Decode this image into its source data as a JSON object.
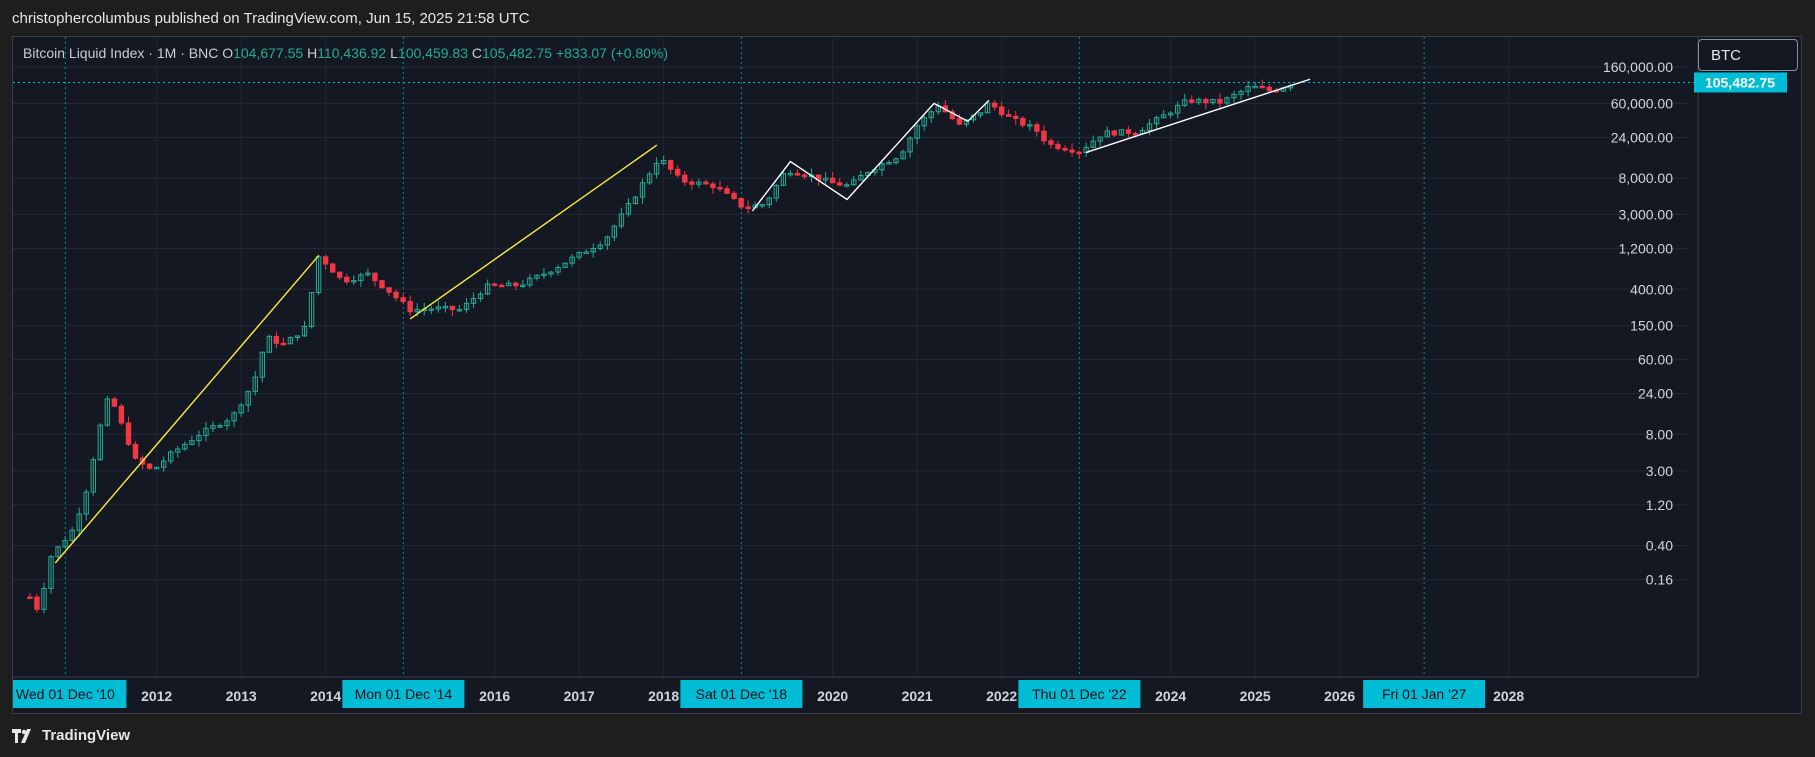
{
  "header": {
    "published_text": "christophercolumbus published on TradingView.com, Jun 15, 2025 21:58 UTC"
  },
  "legend": {
    "symbol_line": "Bitcoin Liquid Index · 1M · BNC",
    "open_label": "O",
    "open_value": "104,677.55",
    "high_label": "H",
    "high_value": "110,436.92",
    "low_label": "L",
    "low_value": "100,459.83",
    "close_label": "C",
    "close_value": "105,482.75",
    "change": "+833.07 (+0.80%)"
  },
  "symbol_box": {
    "label": "BTC"
  },
  "footer": {
    "logo_text": "TradingView"
  },
  "colors": {
    "up": "#22ab94",
    "down": "#f23645",
    "yellow_line": "#ffeb3b",
    "white_line": "#ffffff",
    "badge": "#00bcd4",
    "background": "#141823"
  },
  "chart_data": {
    "type": "candlestick",
    "title": "Bitcoin Liquid Index · 1M · BNC",
    "interval": "1M",
    "y_scale": "log",
    "ylim": [
      0.1,
      160000
    ],
    "xlim": [
      2010.3,
      2028.4
    ],
    "y_ticks": [
      {
        "value": 160000,
        "label": "160,000.00"
      },
      {
        "value": 60000,
        "label": "60,000.00"
      },
      {
        "value": 24000,
        "label": "24,000.00"
      },
      {
        "value": 8000,
        "label": "8,000.00"
      },
      {
        "value": 3000,
        "label": "3,000.00"
      },
      {
        "value": 1200,
        "label": "1,200.00"
      },
      {
        "value": 400,
        "label": "400.00"
      },
      {
        "value": 150,
        "label": "150.00"
      },
      {
        "value": 60,
        "label": "60.00"
      },
      {
        "value": 24,
        "label": "24.00"
      },
      {
        "value": 8,
        "label": "8.00"
      },
      {
        "value": 3,
        "label": "3.00"
      },
      {
        "value": 1.2,
        "label": "1.20"
      },
      {
        "value": 0.4,
        "label": "0.40"
      },
      {
        "value": 0.16,
        "label": "0.16"
      }
    ],
    "x_ticks": [
      {
        "value": 2012,
        "label": "2012"
      },
      {
        "value": 2013,
        "label": "2013"
      },
      {
        "value": 2014,
        "label": "2014"
      },
      {
        "value": 2016,
        "label": "2016"
      },
      {
        "value": 2017,
        "label": "2017"
      },
      {
        "value": 2018,
        "label": "2018"
      },
      {
        "value": 2020,
        "label": "2020"
      },
      {
        "value": 2021,
        "label": "2021"
      },
      {
        "value": 2022,
        "label": "2022"
      },
      {
        "value": 2024,
        "label": "2024"
      },
      {
        "value": 2025,
        "label": "2025"
      },
      {
        "value": 2026,
        "label": "2026"
      },
      {
        "value": 2028,
        "label": "2028"
      }
    ],
    "date_markers": [
      {
        "value": 2010.92,
        "label": "Wed 01 Dec '10"
      },
      {
        "value": 2014.92,
        "label": "Mon 01 Dec '14"
      },
      {
        "value": 2018.92,
        "label": "Sat 01 Dec '18"
      },
      {
        "value": 2022.92,
        "label": "Thu 01 Dec '22"
      },
      {
        "value": 2027.0,
        "label": "Fri 01 Jan '27"
      }
    ],
    "last_price": {
      "value": 105482.75,
      "label": "105,482.75"
    },
    "anchors": [
      [
        2010.5,
        0.1
      ],
      [
        2010.6,
        0.07
      ],
      [
        2010.75,
        0.3
      ],
      [
        2011.0,
        0.6
      ],
      [
        2011.15,
        1.5
      ],
      [
        2011.4,
        20
      ],
      [
        2011.5,
        17
      ],
      [
        2011.75,
        4
      ],
      [
        2011.95,
        3
      ],
      [
        2012.2,
        5
      ],
      [
        2012.5,
        8
      ],
      [
        2012.9,
        13
      ],
      [
        2013.15,
        33
      ],
      [
        2013.3,
        110
      ],
      [
        2013.5,
        90
      ],
      [
        2013.75,
        140
      ],
      [
        2013.92,
        1000
      ],
      [
        2014.2,
        500
      ],
      [
        2014.5,
        600
      ],
      [
        2014.75,
        380
      ],
      [
        2015.0,
        230
      ],
      [
        2015.3,
        240
      ],
      [
        2015.6,
        230
      ],
      [
        2015.9,
        430
      ],
      [
        2016.3,
        450
      ],
      [
        2016.6,
        620
      ],
      [
        2016.9,
        900
      ],
      [
        2017.3,
        1500
      ],
      [
        2017.6,
        4000
      ],
      [
        2017.95,
        14000
      ],
      [
        2018.2,
        7500
      ],
      [
        2018.6,
        6500
      ],
      [
        2018.95,
        3600
      ],
      [
        2019.2,
        4000
      ],
      [
        2019.45,
        10000
      ],
      [
        2019.75,
        8500
      ],
      [
        2020.0,
        7000
      ],
      [
        2020.2,
        6500
      ],
      [
        2020.4,
        9500
      ],
      [
        2020.8,
        15000
      ],
      [
        2021.0,
        33000
      ],
      [
        2021.25,
        58000
      ],
      [
        2021.5,
        33000
      ],
      [
        2021.75,
        48000
      ],
      [
        2021.85,
        61000
      ],
      [
        2022.1,
        40000
      ],
      [
        2022.4,
        30000
      ],
      [
        2022.55,
        20000
      ],
      [
        2022.92,
        16500
      ],
      [
        2023.2,
        27000
      ],
      [
        2023.6,
        28000
      ],
      [
        2023.9,
        42000
      ],
      [
        2024.2,
        65000
      ],
      [
        2024.6,
        62000
      ],
      [
        2024.95,
        95000
      ],
      [
        2025.2,
        84000
      ],
      [
        2025.46,
        105482.75
      ]
    ],
    "trendlines": [
      {
        "color": "yellow",
        "points": [
          [
            2010.8,
            0.25
          ],
          [
            2013.92,
            1000
          ]
        ]
      },
      {
        "color": "yellow",
        "points": [
          [
            2015.0,
            180
          ],
          [
            2017.92,
            19500
          ]
        ]
      },
      {
        "color": "white",
        "points": [
          [
            2019.05,
            3300
          ],
          [
            2019.5,
            12500
          ],
          [
            2020.17,
            4500
          ],
          [
            2021.2,
            60000
          ],
          [
            2021.6,
            37000
          ],
          [
            2021.85,
            65000
          ]
        ]
      },
      {
        "color": "white",
        "points": [
          [
            2023.0,
            16000
          ],
          [
            2025.65,
            115000
          ]
        ]
      }
    ]
  }
}
